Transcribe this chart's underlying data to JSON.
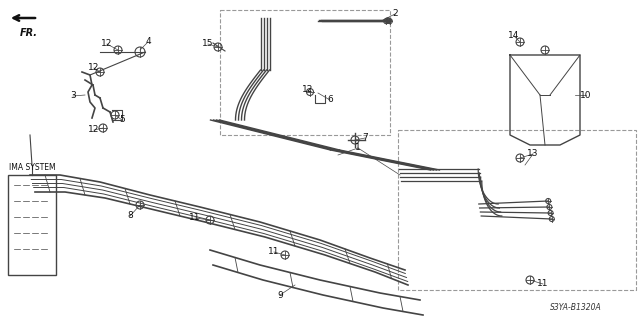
{
  "background_color": "#f0f0f0",
  "diagram_color": "#444444",
  "text_color": "#111111",
  "dark_color": "#222222",
  "gray_color": "#888888",
  "light_gray": "#cccccc",
  "figsize": [
    6.4,
    3.19
  ],
  "dpi": 100,
  "diagram_code": "S3YA-B1320A",
  "fr_text": "FR.",
  "ima_text": "IMA SYSTEM",
  "label_fontsize": 6.5,
  "note_fontsize": 5.5
}
